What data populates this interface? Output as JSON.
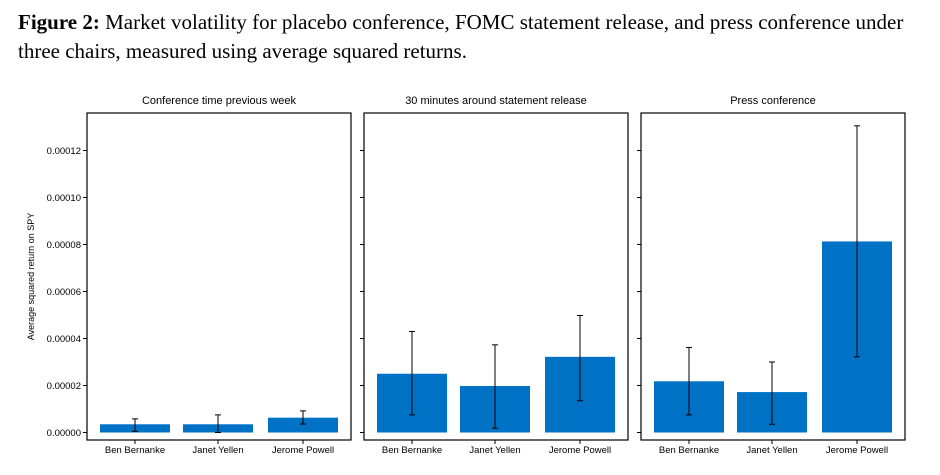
{
  "figure": {
    "label": "Figure 2:",
    "caption": "Market volatility for placebo conference, FOMC statement release, and press conference under three chairs, measured using average squared returns."
  },
  "chart_data": {
    "type": "bar",
    "ylabel": "Average squared return on SPY",
    "ylim": [
      0,
      0.000132
    ],
    "yticks": [
      0,
      2e-05,
      4e-05,
      6e-05,
      8e-05,
      0.0001,
      0.00012
    ],
    "ytick_labels": [
      "0.00000",
      "0.00002",
      "0.00004",
      "0.00006",
      "0.00008",
      "0.00010",
      "0.00012"
    ],
    "categories": [
      "Ben Bernanke",
      "Janet Yellen",
      "Jerome Powell"
    ],
    "bar_color": "#0072c6",
    "panels": [
      {
        "title": "Conference time previous week",
        "values": [
          3.5e-06,
          3.5e-06,
          6.3e-06
        ],
        "error_low": [
          5e-07,
          0.0,
          3.6e-06
        ],
        "error_high": [
          5.8e-06,
          7.5e-06,
          9.2e-06
        ]
      },
      {
        "title": "30 minutes around statement release",
        "values": [
          2.5e-05,
          1.98e-05,
          3.22e-05
        ],
        "error_low": [
          7.5e-06,
          1.8e-06,
          1.35e-05
        ],
        "error_high": [
          4.3e-05,
          3.73e-05,
          4.98e-05
        ]
      },
      {
        "title": "Press conference",
        "values": [
          2.18e-05,
          1.72e-05,
          8.13e-05
        ],
        "error_low": [
          7.5e-06,
          3.5e-06,
          3.22e-05
        ],
        "error_high": [
          3.62e-05,
          3e-05,
          0.0001305
        ]
      }
    ]
  }
}
